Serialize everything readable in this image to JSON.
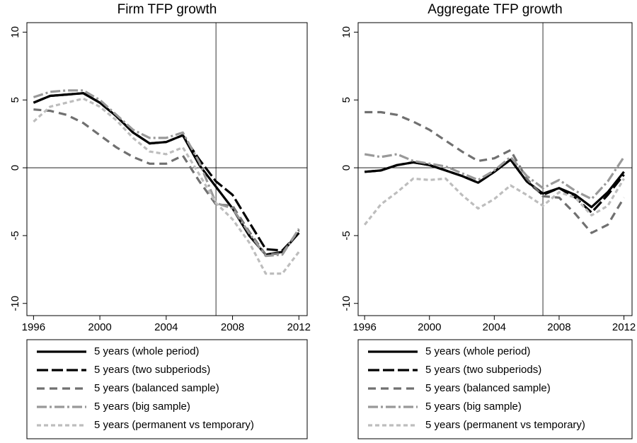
{
  "chart_data": [
    {
      "type": "line",
      "title": "Firm TFP growth",
      "x": [
        1996,
        1997,
        1998,
        1999,
        2000,
        2001,
        2002,
        2003,
        2004,
        2005,
        2006,
        2007,
        2008,
        2009,
        2010,
        2011,
        2012
      ],
      "xlim": [
        1995.6,
        2012.5
      ],
      "xticks": [
        1996,
        2000,
        2004,
        2008,
        2012
      ],
      "ylim": [
        -10.9,
        10.7
      ],
      "yticks": [
        -10,
        -5,
        0,
        5,
        10
      ],
      "vline": 2007,
      "hline": 0,
      "series": [
        {
          "name": "5 years (whole period)",
          "color": "#000000",
          "style": "solid",
          "values": [
            4.8,
            5.3,
            5.4,
            5.5,
            4.8,
            3.8,
            2.6,
            1.8,
            1.9,
            2.4,
            0.2,
            -1.4,
            -3.0,
            -5.0,
            -6.4,
            -6.2,
            -4.8
          ]
        },
        {
          "name": "5 years (two subperiods)",
          "color": "#000000",
          "style": "longdash",
          "values": [
            4.8,
            5.3,
            5.4,
            5.5,
            4.8,
            3.8,
            2.6,
            1.8,
            1.9,
            2.4,
            0.6,
            -1.0,
            -2.0,
            -4.0,
            -6.0,
            -6.1,
            -4.8
          ]
        },
        {
          "name": "5 years (balanced sample)",
          "color": "#707070",
          "style": "dash",
          "values": [
            4.3,
            4.2,
            3.9,
            3.3,
            2.4,
            1.5,
            0.8,
            0.3,
            0.3,
            0.9,
            -1.0,
            -2.7,
            -2.8,
            -4.7,
            -6.4,
            -6.3,
            -4.6
          ]
        },
        {
          "name": "5 years (big sample)",
          "color": "#999999",
          "style": "dashdot",
          "values": [
            5.2,
            5.6,
            5.7,
            5.7,
            5.0,
            3.9,
            2.8,
            2.2,
            2.2,
            2.6,
            0.4,
            -2.6,
            -3.0,
            -4.8,
            -6.5,
            -6.4,
            -4.5
          ]
        },
        {
          "name": "5 years (permanent vs temporary)",
          "color": "#bdbdbd",
          "style": "shortdash",
          "values": [
            3.4,
            4.5,
            4.8,
            5.1,
            4.5,
            3.5,
            2.2,
            1.2,
            1.0,
            1.5,
            -0.5,
            -2.6,
            -3.8,
            -5.5,
            -7.8,
            -7.8,
            -6.2
          ]
        }
      ]
    },
    {
      "type": "line",
      "title": "Aggregate TFP growth",
      "x": [
        1996,
        1997,
        1998,
        1999,
        2000,
        2001,
        2002,
        2003,
        2004,
        2005,
        2006,
        2007,
        2008,
        2009,
        2010,
        2011,
        2012
      ],
      "xlim": [
        1995.6,
        2012.5
      ],
      "xticks": [
        1996,
        2000,
        2004,
        2008,
        2012
      ],
      "ylim": [
        -10.9,
        10.7
      ],
      "yticks": [
        -10,
        -5,
        0,
        5,
        10
      ],
      "vline": 2007,
      "hline": 0,
      "series": [
        {
          "name": "5 years (whole period)",
          "color": "#000000",
          "style": "solid",
          "values": [
            -0.3,
            -0.2,
            0.2,
            0.4,
            0.2,
            -0.2,
            -0.6,
            -1.1,
            -0.3,
            0.6,
            -1.0,
            -1.9,
            -1.5,
            -2.0,
            -2.9,
            -1.8,
            -0.3
          ]
        },
        {
          "name": "5 years (two subperiods)",
          "color": "#000000",
          "style": "longdash",
          "values": [
            -0.3,
            -0.2,
            0.2,
            0.4,
            0.2,
            -0.2,
            -0.6,
            -1.1,
            -0.3,
            0.6,
            -1.0,
            -2.0,
            -1.5,
            -2.2,
            -3.3,
            -2.0,
            -0.5
          ]
        },
        {
          "name": "5 years (balanced sample)",
          "color": "#707070",
          "style": "dash",
          "values": [
            4.1,
            4.1,
            3.9,
            3.4,
            2.8,
            2.0,
            1.2,
            0.5,
            0.7,
            1.3,
            -0.8,
            -2.1,
            -2.2,
            -3.4,
            -4.8,
            -4.2,
            -2.2
          ]
        },
        {
          "name": "5 years (big sample)",
          "color": "#999999",
          "style": "dashdot",
          "values": [
            1.0,
            0.8,
            1.0,
            0.5,
            0.3,
            0.1,
            -0.4,
            -0.9,
            -0.2,
            0.8,
            -0.6,
            -1.5,
            -0.9,
            -1.7,
            -2.3,
            -1.0,
            0.8
          ]
        },
        {
          "name": "5 years (permanent vs temporary)",
          "color": "#bdbdbd",
          "style": "shortdash",
          "values": [
            -4.2,
            -2.7,
            -1.8,
            -0.8,
            -0.9,
            -0.8,
            -2.0,
            -3.0,
            -2.3,
            -1.3,
            -2.0,
            -2.8,
            -1.8,
            -2.2,
            -3.5,
            -2.8,
            -0.8
          ]
        }
      ]
    }
  ]
}
